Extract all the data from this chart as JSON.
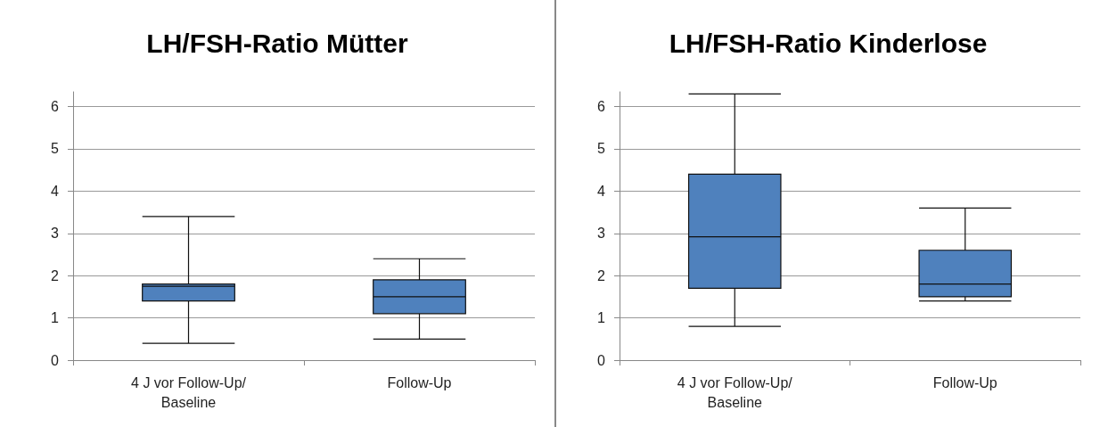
{
  "chart_data": [
    {
      "type": "box",
      "title": "LH/FSH-Ratio Mütter",
      "categories": [
        "4 J vor Follow-Up/\nBaseline",
        "Follow-Up"
      ],
      "ylim": [
        0,
        6.35
      ],
      "yticks": [
        0,
        1,
        2,
        3,
        4,
        5,
        6
      ],
      "grid": "y",
      "series": [
        {
          "color": "#4f81bd",
          "boxes": [
            {
              "low": 0.4,
              "q1": 1.4,
              "median": 1.75,
              "q3": 1.8,
              "high": 3.4
            },
            {
              "low": 0.5,
              "q1": 1.1,
              "median": 1.5,
              "q3": 1.9,
              "high": 2.4
            }
          ]
        }
      ]
    },
    {
      "type": "box",
      "title": "LH/FSH-Ratio Kinderlose",
      "categories": [
        "4 J vor Follow-Up/\nBaseline",
        "Follow-Up"
      ],
      "ylim": [
        0,
        6.35
      ],
      "yticks": [
        0,
        1,
        2,
        3,
        4,
        5,
        6
      ],
      "grid": "y",
      "series": [
        {
          "color": "#4f81bd",
          "boxes": [
            {
              "low": 0.8,
              "q1": 1.7,
              "median": 2.92,
              "q3": 4.4,
              "high": 6.3
            },
            {
              "low": 1.4,
              "q1": 1.5,
              "median": 1.8,
              "q3": 2.6,
              "high": 3.6
            }
          ]
        }
      ]
    }
  ]
}
